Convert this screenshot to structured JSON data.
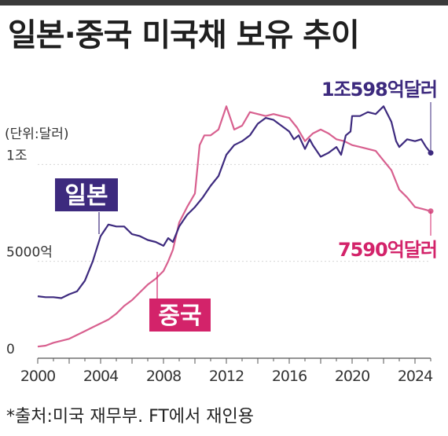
{
  "title": "일본·중국 미국채 보유 추이",
  "source": "*출처:미국 재무부. FT에서 재인용",
  "colors": {
    "japan": "#3d2a7e",
    "china": "#d8608f",
    "china_label": "#d3236a",
    "axis": "#555555",
    "text": "#333333"
  },
  "chart_data": {
    "type": "line",
    "unit_label": "(단위:달러)",
    "x_ticks": [
      "2000",
      "2004",
      "2008",
      "2012",
      "2016",
      "2020",
      "2024"
    ],
    "y_ticks": [
      {
        "value": 0,
        "label": "0"
      },
      {
        "value": 5000,
        "label": "5000억"
      },
      {
        "value": 10000,
        "label": "1조"
      }
    ],
    "xlim": [
      2000,
      2025
    ],
    "ylim": [
      0,
      13500
    ],
    "series": [
      {
        "name": "일본",
        "end_label": "1조598억달러",
        "end_value": 10598,
        "points": [
          [
            2000,
            3200
          ],
          [
            2000.5,
            3150
          ],
          [
            2001,
            3150
          ],
          [
            2001.5,
            3100
          ],
          [
            2002,
            3300
          ],
          [
            2002.5,
            3450
          ],
          [
            2003,
            4000
          ],
          [
            2003.5,
            5000
          ],
          [
            2004,
            6300
          ],
          [
            2004.5,
            6900
          ],
          [
            2005,
            6800
          ],
          [
            2005.5,
            6800
          ],
          [
            2006,
            6400
          ],
          [
            2006.5,
            6300
          ],
          [
            2007,
            6100
          ],
          [
            2007.5,
            6000
          ],
          [
            2008,
            5800
          ],
          [
            2008.3,
            6200
          ],
          [
            2008.6,
            6000
          ],
          [
            2009,
            6800
          ],
          [
            2009.5,
            7400
          ],
          [
            2010,
            7800
          ],
          [
            2010.5,
            8300
          ],
          [
            2011,
            8900
          ],
          [
            2011.5,
            9400
          ],
          [
            2012,
            10500
          ],
          [
            2012.5,
            11000
          ],
          [
            2013,
            11200
          ],
          [
            2013.5,
            11500
          ],
          [
            2014,
            12100
          ],
          [
            2014.5,
            12400
          ],
          [
            2015,
            12300
          ],
          [
            2015.5,
            12000
          ],
          [
            2016,
            11700
          ],
          [
            2016.3,
            11300
          ],
          [
            2016.6,
            11500
          ],
          [
            2017,
            10800
          ],
          [
            2017.3,
            11300
          ],
          [
            2017.5,
            11000
          ],
          [
            2018,
            10400
          ],
          [
            2018.5,
            10600
          ],
          [
            2019,
            10900
          ],
          [
            2019.3,
            10500
          ],
          [
            2019.6,
            11500
          ],
          [
            2019.9,
            11700
          ],
          [
            2020,
            12500
          ],
          [
            2020.5,
            12500
          ],
          [
            2021,
            12700
          ],
          [
            2021.5,
            12600
          ],
          [
            2022,
            13000
          ],
          [
            2022.5,
            12200
          ],
          [
            2022.8,
            11200
          ],
          [
            2023,
            10900
          ],
          [
            2023.5,
            11300
          ],
          [
            2024,
            11200
          ],
          [
            2024.4,
            11300
          ],
          [
            2024.7,
            10900
          ],
          [
            2025,
            10598
          ]
        ]
      },
      {
        "name": "중국",
        "end_label": "7590억달러",
        "end_value": 7590,
        "points": [
          [
            2000,
            600
          ],
          [
            2000.5,
            650
          ],
          [
            2001,
            800
          ],
          [
            2001.5,
            900
          ],
          [
            2002,
            1000
          ],
          [
            2002.5,
            1200
          ],
          [
            2003,
            1400
          ],
          [
            2003.5,
            1600
          ],
          [
            2004,
            1800
          ],
          [
            2004.5,
            2000
          ],
          [
            2005,
            2300
          ],
          [
            2005.5,
            2700
          ],
          [
            2006,
            3000
          ],
          [
            2006.5,
            3400
          ],
          [
            2007,
            3800
          ],
          [
            2007.5,
            4100
          ],
          [
            2008,
            4500
          ],
          [
            2008.3,
            5000
          ],
          [
            2008.6,
            5600
          ],
          [
            2009,
            7000
          ],
          [
            2009.5,
            7800
          ],
          [
            2010,
            8500
          ],
          [
            2010.3,
            11000
          ],
          [
            2010.6,
            11500
          ],
          [
            2011,
            11500
          ],
          [
            2011.5,
            11800
          ],
          [
            2012,
            13000
          ],
          [
            2012.5,
            11800
          ],
          [
            2013,
            12000
          ],
          [
            2013.5,
            12700
          ],
          [
            2014,
            12600
          ],
          [
            2014.5,
            12500
          ],
          [
            2015,
            12600
          ],
          [
            2015.5,
            12500
          ],
          [
            2016,
            12400
          ],
          [
            2016.5,
            11900
          ],
          [
            2017,
            11200
          ],
          [
            2017.5,
            11600
          ],
          [
            2018,
            11800
          ],
          [
            2018.5,
            11600
          ],
          [
            2019,
            11300
          ],
          [
            2019.5,
            11200
          ],
          [
            2020,
            11000
          ],
          [
            2020.5,
            10900
          ],
          [
            2021,
            10800
          ],
          [
            2021.5,
            10700
          ],
          [
            2022,
            10200
          ],
          [
            2022.5,
            9700
          ],
          [
            2023,
            8700
          ],
          [
            2023.5,
            8300
          ],
          [
            2024,
            7800
          ],
          [
            2024.5,
            7700
          ],
          [
            2025,
            7590
          ]
        ]
      }
    ],
    "inline_labels": [
      "일본",
      "중국"
    ]
  }
}
